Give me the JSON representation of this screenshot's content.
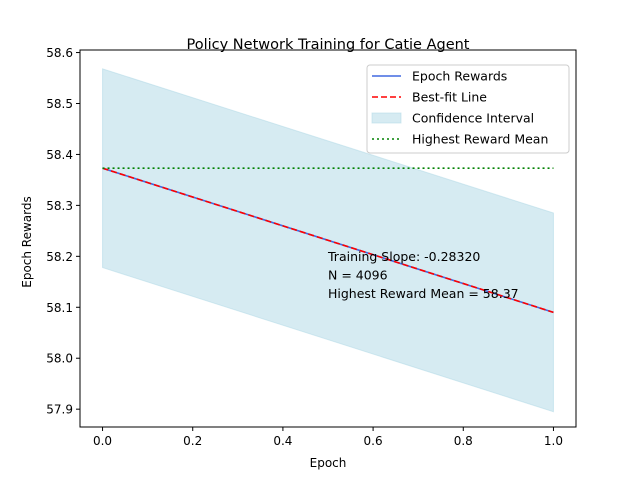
{
  "chart_data": {
    "type": "line",
    "title": "Policy Network Training for Catie Agent",
    "xlabel": "Epoch",
    "ylabel": "Epoch Rewards",
    "xlim": [
      -0.05,
      1.05
    ],
    "ylim": [
      57.865,
      58.605
    ],
    "x_ticks": [
      "0.0",
      "0.2",
      "0.4",
      "0.6",
      "0.8",
      "1.0"
    ],
    "y_ticks": [
      "57.9",
      "58.0",
      "58.1",
      "58.2",
      "58.3",
      "58.4",
      "58.5",
      "58.6"
    ],
    "grid": false,
    "legend_position": "upper right",
    "series": [
      {
        "name": "Epoch Rewards",
        "style": "solid",
        "color": "#4169e1",
        "x": [
          0.0,
          1.0
        ],
        "y": [
          58.373,
          58.09
        ]
      },
      {
        "name": "Best-fit Line",
        "style": "dashed",
        "color": "#ff0000",
        "x": [
          0.0,
          1.0
        ],
        "y": [
          58.373,
          58.09
        ]
      },
      {
        "name": "Confidence Interval",
        "style": "band",
        "color": "#add8e6",
        "x": [
          0.0,
          1.0
        ],
        "upper": [
          58.568,
          58.285
        ],
        "lower": [
          58.178,
          57.895
        ]
      },
      {
        "name": "Highest Reward Mean",
        "style": "dotted",
        "color": "#008000",
        "x": [
          0.0,
          1.0
        ],
        "y": [
          58.373,
          58.373
        ]
      }
    ],
    "annotation_lines": [
      "Training Slope: -0.28320",
      "N = 4096",
      "Highest Reward Mean = 58.37"
    ]
  }
}
